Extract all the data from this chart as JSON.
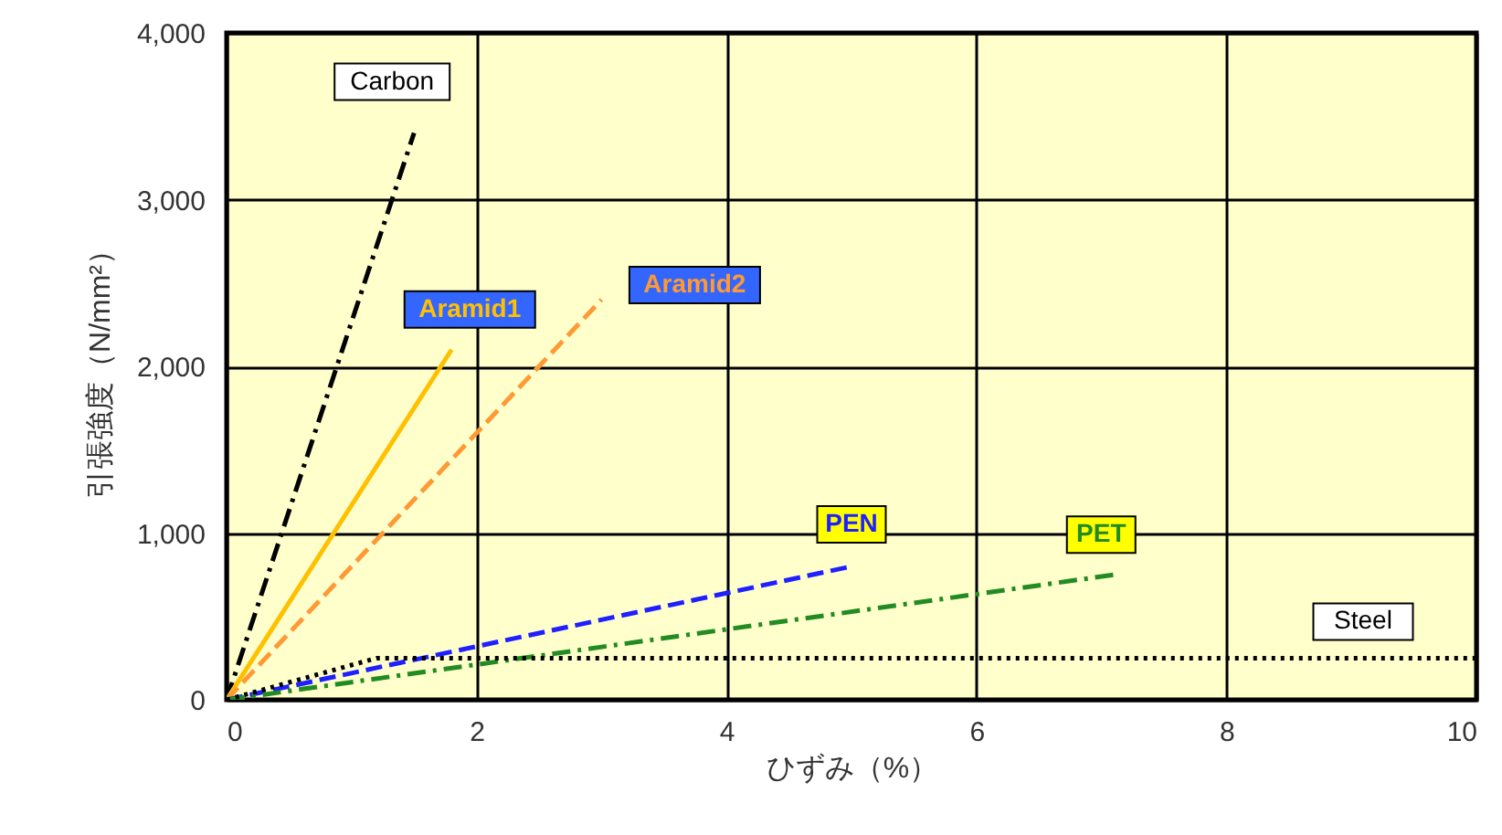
{
  "chart_data": {
    "type": "line",
    "xlabel": "ひずみ（%）",
    "ylabel": "引張強度（N/mm²）",
    "xlim": [
      0,
      10
    ],
    "xticks": [
      0,
      2,
      4,
      6,
      8,
      10
    ],
    "ylim": [
      0,
      4000
    ],
    "yticks": [
      {
        "value": 0,
        "label": "0"
      },
      {
        "value": 1000,
        "label": "1,000"
      },
      {
        "value": 2000,
        "label": "2,000"
      },
      {
        "value": 3000,
        "label": "3,000"
      },
      {
        "value": 4000,
        "label": "4,000"
      }
    ],
    "grid": true,
    "legend": false,
    "marker": "none",
    "series": [
      {
        "name": "Carbon",
        "color": "#000000",
        "line_style": "dashdot",
        "x": [
          0,
          1.5
        ],
        "values": [
          0,
          3400
        ]
      },
      {
        "name": "Aramid1",
        "color": "#ffc000",
        "line_style": "solid",
        "x": [
          0,
          1.8
        ],
        "values": [
          0,
          2100
        ]
      },
      {
        "name": "Aramid2",
        "color": "#ff9933",
        "line_style": "dashed",
        "x": [
          0,
          3.0
        ],
        "values": [
          0,
          2400
        ]
      },
      {
        "name": "PEN",
        "color": "#1f1fff",
        "line_style": "dashed",
        "x": [
          0,
          5.0
        ],
        "values": [
          0,
          800
        ]
      },
      {
        "name": "PET",
        "color": "#228b22",
        "line_style": "dashdot",
        "x": [
          0,
          7.1
        ],
        "values": [
          0,
          750
        ]
      },
      {
        "name": "Steel",
        "color": "#000000",
        "line_style": "dotted",
        "x": [
          0,
          1.2,
          10
        ],
        "values": [
          0,
          250,
          250
        ]
      }
    ]
  }
}
